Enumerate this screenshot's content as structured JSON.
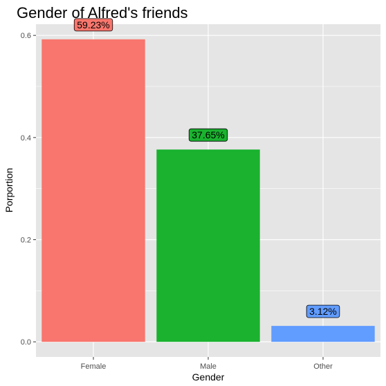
{
  "chart_data": {
    "type": "bar",
    "title": "Gender of Alfred's friends",
    "xlabel": "Gender",
    "ylabel": "Porportion",
    "categories": [
      "Female",
      "Male",
      "Other"
    ],
    "values": [
      0.5923,
      0.3765,
      0.0312
    ],
    "data_labels": [
      "59.23%",
      "37.65%",
      "3.12%"
    ],
    "colors": [
      "#F8766D",
      "#1AB22F",
      "#619CFF"
    ],
    "ylim": [
      -0.0296,
      0.6219
    ],
    "y_ticks": [
      0.0,
      0.2,
      0.4,
      0.6
    ],
    "y_tick_labels": [
      "0.0",
      "0.2",
      "0.4",
      "0.6"
    ],
    "y_minor_ticks": [
      0.1,
      0.3,
      0.5
    ],
    "grid": true,
    "legend": "none",
    "panel_background": "#E5E5E5",
    "grid_color": "#FFFFFF"
  }
}
